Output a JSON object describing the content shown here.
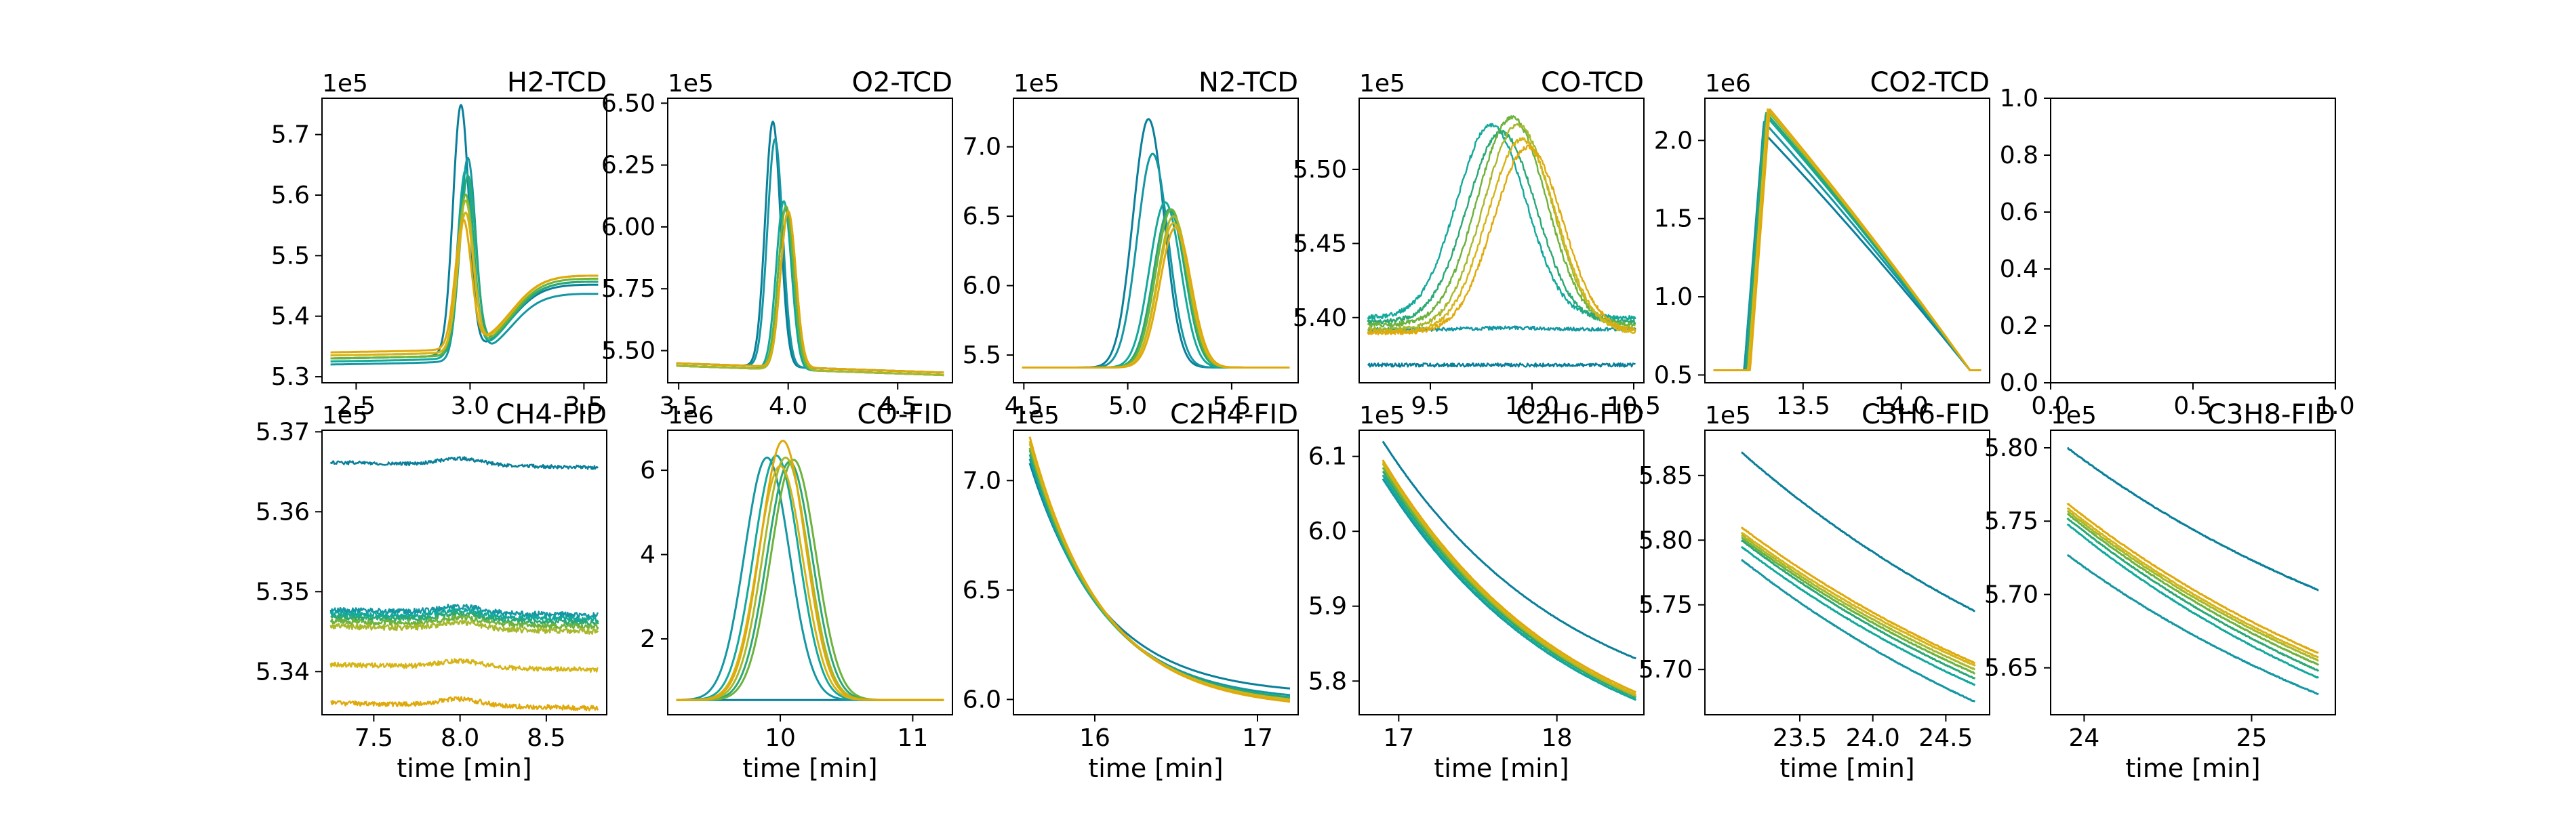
{
  "figure": {
    "xlabel_common": "time [min]"
  },
  "palette": [
    "#0a7f9a",
    "#1497a3",
    "#12a99c",
    "#2aa876",
    "#6cb23c",
    "#a8b82c",
    "#d6b416",
    "#e0a90b"
  ],
  "chart_data": [
    {
      "type": "line",
      "title": "H2-TCD",
      "offset_text": "1e5",
      "xlabel": "",
      "xlim": [
        2.35,
        3.6
      ],
      "ylim": [
        5.29,
        5.76
      ],
      "xticks": [
        2.5,
        3.0,
        3.5
      ],
      "xtick_labels": [
        "2.5",
        "3.0",
        "3.5"
      ],
      "yticks": [
        5.3,
        5.4,
        5.5,
        5.6,
        5.7
      ],
      "ytick_labels": [
        "5.3",
        "5.4",
        "5.5",
        "5.6",
        "5.7"
      ],
      "shape": {
        "kind": "peak_step",
        "center": 2.98,
        "width": 0.035,
        "step_center": 3.18,
        "step_width": 0.07
      },
      "series": [
        {
          "baseline": 5.33,
          "final": 5.455,
          "peak": 5.74,
          "shift": -0.02
        },
        {
          "baseline": 5.32,
          "final": 5.44,
          "peak": 5.65,
          "shift": 0.01
        },
        {
          "baseline": 5.325,
          "final": 5.46,
          "peak": 5.63,
          "shift": 0.0
        },
        {
          "baseline": 5.33,
          "final": 5.46,
          "peak": 5.62,
          "shift": 0.01
        },
        {
          "baseline": 5.33,
          "final": 5.465,
          "peak": 5.59,
          "shift": 0.0
        },
        {
          "baseline": 5.335,
          "final": 5.47,
          "peak": 5.58,
          "shift": 0.0
        },
        {
          "baseline": 5.335,
          "final": 5.47,
          "peak": 5.56,
          "shift": 0.0
        },
        {
          "baseline": 5.34,
          "final": 5.47,
          "peak": 5.55,
          "shift": -0.01
        }
      ]
    },
    {
      "type": "line",
      "title": "O2-TCD",
      "offset_text": "1e5",
      "xlabel": "",
      "xlim": [
        3.45,
        4.75
      ],
      "ylim": [
        5.37,
        6.52
      ],
      "xticks": [
        3.5,
        4.0,
        4.5
      ],
      "xtick_labels": [
        "3.5",
        "4.0",
        "4.5"
      ],
      "yticks": [
        5.5,
        5.75,
        6.0,
        6.25,
        6.5
      ],
      "ytick_labels": [
        "5.50",
        "5.75",
        "6.00",
        "6.25",
        "6.50"
      ],
      "shape": {
        "kind": "peak",
        "center": 3.97,
        "width": 0.035,
        "drift": -0.04
      },
      "series": [
        {
          "baseline": 5.45,
          "peak": 6.44,
          "shift": -0.04
        },
        {
          "baseline": 5.45,
          "peak": 6.37,
          "shift": -0.03
        },
        {
          "baseline": 5.44,
          "peak": 6.12,
          "shift": 0.01
        },
        {
          "baseline": 5.44,
          "peak": 6.1,
          "shift": 0.02
        },
        {
          "baseline": 5.44,
          "peak": 6.1,
          "shift": 0.02
        },
        {
          "baseline": 5.44,
          "peak": 6.08,
          "shift": 0.03
        },
        {
          "baseline": 5.45,
          "peak": 6.08,
          "shift": 0.03
        },
        {
          "baseline": 5.45,
          "peak": 6.08,
          "shift": 0.03
        }
      ]
    },
    {
      "type": "line",
      "title": "N2-TCD",
      "offset_text": "1e5",
      "xlabel": "",
      "xlim": [
        4.45,
        5.82
      ],
      "ylim": [
        5.3,
        7.35
      ],
      "xticks": [
        4.5,
        5.0,
        5.5
      ],
      "xtick_labels": [
        "4.5",
        "5.0",
        "5.5"
      ],
      "yticks": [
        5.5,
        6.0,
        6.5,
        7.0
      ],
      "ytick_labels": [
        "5.5",
        "6.0",
        "6.5",
        "7.0"
      ],
      "shape": {
        "kind": "peak",
        "center": 5.18,
        "width": 0.075,
        "drift": 0.0
      },
      "series": [
        {
          "baseline": 5.41,
          "peak": 7.2,
          "shift": -0.08
        },
        {
          "baseline": 5.41,
          "peak": 6.95,
          "shift": -0.06
        },
        {
          "baseline": 5.41,
          "peak": 6.6,
          "shift": 0.0
        },
        {
          "baseline": 5.41,
          "peak": 6.55,
          "shift": 0.02
        },
        {
          "baseline": 5.41,
          "peak": 6.55,
          "shift": 0.03
        },
        {
          "baseline": 5.41,
          "peak": 6.5,
          "shift": 0.04
        },
        {
          "baseline": 5.41,
          "peak": 6.45,
          "shift": 0.04
        },
        {
          "baseline": 5.41,
          "peak": 6.42,
          "shift": 0.05
        }
      ]
    },
    {
      "type": "line",
      "title": "CO-TCD",
      "offset_text": "1e5",
      "xlabel": "",
      "xlim": [
        9.15,
        10.55
      ],
      "ylim": [
        5.356,
        5.548
      ],
      "xticks": [
        9.5,
        10.0,
        10.5
      ],
      "xtick_labels": [
        "9.5",
        "10.0",
        "10.5"
      ],
      "yticks": [
        5.4,
        5.45,
        5.5
      ],
      "ytick_labels": [
        "5.40",
        "5.45",
        "5.50"
      ],
      "shape": {
        "kind": "peak_noisy",
        "center": 9.9,
        "width": 0.17
      },
      "series": [
        {
          "baseline": 5.368,
          "peak": 5.368,
          "shift": 0.0,
          "noise": 0.0012
        },
        {
          "baseline": 5.392,
          "peak": 5.393,
          "shift": 0.0,
          "noise": 0.0012
        },
        {
          "baseline": 5.4,
          "peak": 5.53,
          "shift": -0.1,
          "noise": 0.0015
        },
        {
          "baseline": 5.397,
          "peak": 5.525,
          "shift": -0.05,
          "noise": 0.0015
        },
        {
          "baseline": 5.395,
          "peak": 5.535,
          "shift": 0.0,
          "noise": 0.0015
        },
        {
          "baseline": 5.392,
          "peak": 5.53,
          "shift": 0.03,
          "noise": 0.0015
        },
        {
          "baseline": 5.39,
          "peak": 5.52,
          "shift": 0.05,
          "noise": 0.0015
        },
        {
          "baseline": 5.39,
          "peak": 5.515,
          "shift": 0.08,
          "noise": 0.0015
        }
      ]
    },
    {
      "type": "line",
      "title": "CO2-TCD",
      "offset_text": "1e6",
      "xlabel": "",
      "xlim": [
        13.0,
        14.45
      ],
      "ylim": [
        0.45,
        2.27
      ],
      "xticks": [
        13.5,
        14.0
      ],
      "xtick_labels": [
        "13.5",
        "14.0"
      ],
      "yticks": [
        0.5,
        1.0,
        1.5,
        2.0
      ],
      "ytick_labels": [
        "0.5",
        "1.0",
        "1.5",
        "2.0"
      ],
      "shape": {
        "kind": "sawtooth",
        "start": 13.2,
        "rise": 0.1,
        "end": 14.35
      },
      "series": [
        {
          "baseline": 0.53,
          "peak": 2.05,
          "shift": 0.0
        },
        {
          "baseline": 0.53,
          "peak": 2.12,
          "shift": 0.0
        },
        {
          "baseline": 0.53,
          "peak": 2.16,
          "shift": 0.01
        },
        {
          "baseline": 0.53,
          "peak": 2.18,
          "shift": 0.01
        },
        {
          "baseline": 0.53,
          "peak": 2.19,
          "shift": 0.02
        },
        {
          "baseline": 0.53,
          "peak": 2.2,
          "shift": 0.02
        },
        {
          "baseline": 0.53,
          "peak": 2.2,
          "shift": 0.02
        },
        {
          "baseline": 0.53,
          "peak": 2.2,
          "shift": 0.03
        }
      ]
    },
    {
      "type": "line",
      "title": "",
      "offset_text": "",
      "xlabel": "",
      "xlim": [
        0.0,
        1.0
      ],
      "ylim": [
        0.0,
        1.0
      ],
      "xticks": [
        0.0,
        0.5,
        1.0
      ],
      "xtick_labels": [
        "0.0",
        "0.5",
        "1.0"
      ],
      "yticks": [
        0.0,
        0.2,
        0.4,
        0.6,
        0.8,
        1.0
      ],
      "ytick_labels": [
        "0.0",
        "0.2",
        "0.4",
        "0.6",
        "0.8",
        "1.0"
      ],
      "shape": {
        "kind": "none"
      },
      "series": []
    },
    {
      "type": "line",
      "title": "CH4-FID",
      "offset_text": "1e5",
      "xlabel": "time [min]",
      "xlim": [
        7.2,
        8.85
      ],
      "ylim": [
        5.3346,
        5.3702
      ],
      "xticks": [
        7.5,
        8.0,
        8.5
      ],
      "xtick_labels": [
        "7.5",
        "8.0",
        "8.5"
      ],
      "yticks": [
        5.34,
        5.35,
        5.36,
        5.37
      ],
      "ytick_labels": [
        "5.34",
        "5.35",
        "5.36",
        "5.37"
      ],
      "shape": {
        "kind": "flat_noisy",
        "bump_center": 8.0,
        "bump_width": 0.12,
        "bump": 0.0008,
        "drift": -0.0007
      },
      "series": [
        {
          "baseline": 5.3662,
          "noise": 0.00022
        },
        {
          "baseline": 5.3477,
          "noise": 0.00035
        },
        {
          "baseline": 5.3472,
          "noise": 0.00035
        },
        {
          "baseline": 5.3468,
          "noise": 0.00035
        },
        {
          "baseline": 5.3463,
          "noise": 0.00035
        },
        {
          "baseline": 5.3457,
          "noise": 0.00035
        },
        {
          "baseline": 5.3409,
          "noise": 0.0003
        },
        {
          "baseline": 5.3361,
          "noise": 0.0003
        }
      ]
    },
    {
      "type": "line",
      "title": "CO-FID",
      "offset_text": "1e6",
      "xlabel": "",
      "xlim": [
        9.15,
        11.3
      ],
      "ylim": [
        0.2,
        6.95
      ],
      "xticks": [
        10,
        11
      ],
      "xtick_labels": [
        "10",
        "11"
      ],
      "yticks": [
        2,
        4,
        6
      ],
      "ytick_labels": [
        "2",
        "4",
        "6"
      ],
      "shape": {
        "kind": "peak",
        "center": 10.02,
        "width": 0.17,
        "drift": 0.0
      },
      "series": [
        {
          "baseline": 0.55,
          "peak": 0.55,
          "shift": 0.0
        },
        {
          "baseline": 0.55,
          "peak": 6.3,
          "shift": -0.12
        },
        {
          "baseline": 0.55,
          "peak": 6.35,
          "shift": -0.05
        },
        {
          "baseline": 0.55,
          "peak": 6.2,
          "shift": 0.05
        },
        {
          "baseline": 0.55,
          "peak": 6.25,
          "shift": 0.08
        },
        {
          "baseline": 0.55,
          "peak": 6.3,
          "shift": 0.02
        },
        {
          "baseline": 0.55,
          "peak": 6.1,
          "shift": -0.02
        },
        {
          "baseline": 0.55,
          "peak": 6.7,
          "shift": 0.0
        }
      ]
    },
    {
      "type": "line",
      "title": "C2H4-FID",
      "offset_text": "1e5",
      "xlabel": "time [min]",
      "xlim": [
        15.5,
        17.25
      ],
      "ylim": [
        5.93,
        7.23
      ],
      "xticks": [
        16,
        17
      ],
      "xtick_labels": [
        "16",
        "17"
      ],
      "yticks": [
        6.0,
        6.5,
        7.0
      ],
      "ytick_labels": [
        "6.0",
        "6.5",
        "7.0"
      ],
      "shape": {
        "kind": "decay",
        "x0": 15.6,
        "x1": 17.2,
        "tau": 0.45
      },
      "series": [
        {
          "start": 7.08,
          "end": 6.05
        },
        {
          "start": 7.1,
          "end": 6.02
        },
        {
          "start": 7.12,
          "end": 6.01
        },
        {
          "start": 7.14,
          "end": 6.01
        },
        {
          "start": 7.15,
          "end": 6.0
        },
        {
          "start": 7.17,
          "end": 6.0
        },
        {
          "start": 7.18,
          "end": 6.0
        },
        {
          "start": 7.2,
          "end": 5.99
        }
      ]
    },
    {
      "type": "line",
      "title": "C2H6-FID",
      "offset_text": "1e5",
      "xlabel": "time [min]",
      "xlim": [
        16.75,
        18.55
      ],
      "ylim": [
        5.755,
        6.135
      ],
      "xticks": [
        17,
        18
      ],
      "xtick_labels": [
        "17",
        "18"
      ],
      "yticks": [
        5.8,
        5.9,
        6.0,
        6.1
      ],
      "ytick_labels": [
        "5.8",
        "5.9",
        "6.0",
        "6.1"
      ],
      "shape": {
        "kind": "decay",
        "x0": 16.9,
        "x1": 18.5,
        "tau": 1.2
      },
      "series": [
        {
          "start": 6.12,
          "end": 5.83
        },
        {
          "start": 6.07,
          "end": 5.775
        },
        {
          "start": 6.075,
          "end": 5.775
        },
        {
          "start": 6.08,
          "end": 5.778
        },
        {
          "start": 6.085,
          "end": 5.78
        },
        {
          "start": 6.09,
          "end": 5.78
        },
        {
          "start": 6.092,
          "end": 5.782
        },
        {
          "start": 6.095,
          "end": 5.785
        }
      ]
    },
    {
      "type": "line",
      "title": "C3H6-FID",
      "offset_text": "1e5",
      "xlabel": "time [min]",
      "xlim": [
        22.85,
        24.8
      ],
      "ylim": [
        5.665,
        5.885
      ],
      "xticks": [
        23.5,
        24.0,
        24.5
      ],
      "xtick_labels": [
        "23.5",
        "24.0",
        "24.5"
      ],
      "yticks": [
        5.7,
        5.75,
        5.8,
        5.85
      ],
      "ytick_labels": [
        "5.70",
        "5.75",
        "5.80",
        "5.85"
      ],
      "shape": {
        "kind": "decay",
        "x0": 23.1,
        "x1": 24.7,
        "tau": 3.0
      },
      "series": [
        {
          "start": 5.868,
          "end": 5.745
        },
        {
          "start": 5.785,
          "end": 5.675
        },
        {
          "start": 5.795,
          "end": 5.688
        },
        {
          "start": 5.8,
          "end": 5.693
        },
        {
          "start": 5.802,
          "end": 5.697
        },
        {
          "start": 5.804,
          "end": 5.7
        },
        {
          "start": 5.806,
          "end": 5.703
        },
        {
          "start": 5.81,
          "end": 5.705
        }
      ]
    },
    {
      "type": "line",
      "title": "C3H8-FID",
      "offset_text": "1e5",
      "xlabel": "time [min]",
      "xlim": [
        23.8,
        25.5
      ],
      "ylim": [
        5.618,
        5.812
      ],
      "xticks": [
        24,
        25
      ],
      "xtick_labels": [
        "24",
        "25"
      ],
      "yticks": [
        5.65,
        5.7,
        5.75,
        5.8
      ],
      "ytick_labels": [
        "5.65",
        "5.70",
        "5.75",
        "5.80"
      ],
      "shape": {
        "kind": "decay",
        "x0": 23.9,
        "x1": 25.4,
        "tau": 2.5
      },
      "series": [
        {
          "start": 5.8,
          "end": 5.703
        },
        {
          "start": 5.727,
          "end": 5.632
        },
        {
          "start": 5.748,
          "end": 5.643
        },
        {
          "start": 5.752,
          "end": 5.648
        },
        {
          "start": 5.755,
          "end": 5.652
        },
        {
          "start": 5.757,
          "end": 5.655
        },
        {
          "start": 5.759,
          "end": 5.657
        },
        {
          "start": 5.762,
          "end": 5.66
        }
      ]
    }
  ]
}
